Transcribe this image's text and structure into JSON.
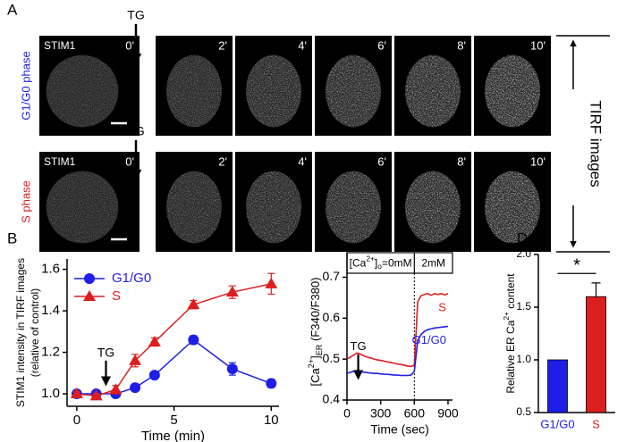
{
  "panel_a": {
    "panel": "A",
    "side_label": "TIRF images",
    "rows": [
      {
        "label": "G1/G0 phase",
        "color": "#1e1ee6",
        "stain": "STIM1",
        "stimulus": "TG",
        "times": [
          "0'",
          "2'",
          "4'",
          "6'",
          "8'",
          "10'"
        ]
      },
      {
        "label": "S phase",
        "color": "#dc1e1e",
        "stain": "STIM1",
        "stimulus": "TG",
        "times": [
          "0'",
          "2'",
          "4'",
          "6'",
          "8'",
          "10'"
        ]
      }
    ]
  },
  "chart_data": [
    {
      "panel": "B",
      "type": "line",
      "x_label": "Time (min)",
      "y_label": [
        "STIM1 intensity in TIRF images",
        "(relative of control)"
      ],
      "x": [
        0,
        1,
        2,
        3,
        4,
        6,
        8,
        10
      ],
      "series": [
        {
          "name": "G1/G0",
          "color": "#1e1ee6",
          "marker": "circle",
          "values": [
            1.0,
            1.0,
            1.0,
            1.03,
            1.09,
            1.26,
            1.12,
            1.05
          ],
          "errors": [
            0.01,
            0.01,
            0.01,
            0.01,
            0.01,
            0.02,
            0.03,
            0.02
          ]
        },
        {
          "name": "S",
          "color": "#dc1e1e",
          "marker": "triangle",
          "values": [
            1.0,
            0.99,
            1.02,
            1.16,
            1.25,
            1.43,
            1.49,
            1.53
          ],
          "errors": [
            0.01,
            0.01,
            0.02,
            0.03,
            0.02,
            0.02,
            0.03,
            0.05
          ]
        }
      ],
      "xlim": [
        -0.5,
        10.4
      ],
      "ylim": [
        0.94,
        1.65
      ],
      "xticks": [
        0,
        5,
        10
      ],
      "yticks": [
        {
          "value": 1.0,
          "label": "1.0"
        },
        {
          "value": 1.2,
          "label": "1.2"
        },
        {
          "value": 1.4,
          "label": "1.4"
        },
        {
          "value": 1.6,
          "label": "1.6"
        }
      ],
      "legend": "upper left",
      "annotation": {
        "text": "TG",
        "x": 1.5
      }
    },
    {
      "panel": "C",
      "type": "line",
      "x_label": "Time (sec)",
      "y_label": [
        {
          "text": "[Ca"
        },
        {
          "text": "2+",
          "script": "super"
        },
        {
          "text": "]"
        },
        {
          "text": "ER",
          "script": "sub"
        },
        {
          "text": " (F340/F380)"
        }
      ],
      "x": [
        0,
        30,
        60,
        90,
        120,
        150,
        180,
        210,
        240,
        270,
        300,
        330,
        360,
        390,
        420,
        450,
        480,
        510,
        540,
        570,
        600,
        630,
        660,
        690,
        720,
        750,
        780,
        810,
        840,
        870,
        900
      ],
      "series": [
        {
          "name": "S",
          "color": "#dc1e1e",
          "values": [
            0.5,
            0.505,
            0.51,
            0.515,
            0.512,
            0.508,
            0.505,
            0.503,
            0.5,
            0.498,
            0.497,
            0.495,
            0.493,
            0.492,
            0.49,
            0.488,
            0.487,
            0.485,
            0.483,
            0.482,
            0.485,
            0.64,
            0.655,
            0.658,
            0.66,
            0.656,
            0.66,
            0.658,
            0.66,
            0.657,
            0.66
          ]
        },
        {
          "name": "G1/G0",
          "color": "#1e1ee6",
          "values": [
            0.465,
            0.468,
            0.47,
            0.472,
            0.47,
            0.468,
            0.467,
            0.466,
            0.465,
            0.465,
            0.464,
            0.463,
            0.463,
            0.462,
            0.461,
            0.461,
            0.46,
            0.46,
            0.46,
            0.461,
            0.47,
            0.545,
            0.56,
            0.568,
            0.572,
            0.574,
            0.576,
            0.577,
            0.578,
            0.579,
            0.58
          ]
        }
      ],
      "xlim": [
        0,
        940
      ],
      "ylim": [
        0.4,
        0.76
      ],
      "xticks": [
        0,
        300,
        600,
        900
      ],
      "yticks": [
        0.4,
        0.5,
        0.6,
        0.7
      ],
      "legend": "inline",
      "annotation": {
        "text": "TG",
        "x": 100
      },
      "conditions": {
        "switch_x": 600,
        "before": [
          {
            "text": "[Ca"
          },
          {
            "text": "2+",
            "script": "super"
          },
          {
            "text": "]"
          },
          {
            "text": "o",
            "script": "sub"
          },
          {
            "text": "=0mM"
          }
        ],
        "after": "2mM"
      }
    },
    {
      "panel": "D",
      "type": "bar",
      "y_label": [
        {
          "text": "Relative ER Ca"
        },
        {
          "text": "2+",
          "script": "super"
        },
        {
          "text": " content"
        }
      ],
      "categories": [
        "G1/G0",
        "S"
      ],
      "values": [
        1.0,
        1.6
      ],
      "errors": [
        null,
        0.13
      ],
      "colors": [
        "#1e1ee6",
        "#dc1e1e"
      ],
      "ylim": [
        0.5,
        2.0
      ],
      "yticks": [
        {
          "value": 0.5,
          "label": "0.5"
        },
        {
          "value": 1.0,
          "label": "1.0"
        },
        {
          "value": 1.5,
          "label": "1.5"
        },
        {
          "value": 2.0,
          "label": "2.0"
        }
      ],
      "significance": "*"
    }
  ]
}
